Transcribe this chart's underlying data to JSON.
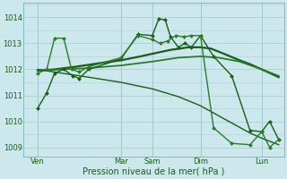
{
  "background_color": "#cce8ec",
  "grid_color": "#aad0d6",
  "line_color": "#1a5c1a",
  "xlabel": "Pression niveau de la mer( hPa )",
  "yticks": [
    1009,
    1010,
    1011,
    1012,
    1013,
    1014
  ],
  "xtick_labels": [
    "Ven",
    "Mar",
    "Sam",
    "Dim",
    "Lun"
  ],
  "xtick_positions": [
    0.055,
    0.375,
    0.495,
    0.68,
    0.915
  ],
  "vline_positions": [
    0.055,
    0.375,
    0.495,
    0.68,
    0.915
  ],
  "series": [
    {
      "x": [
        0.055,
        0.09,
        0.12,
        0.155,
        0.19,
        0.215,
        0.25,
        0.375,
        0.44,
        0.495,
        0.52,
        0.545,
        0.565,
        0.595,
        0.62,
        0.645,
        0.68,
        0.73,
        0.8,
        0.87,
        0.915,
        0.945,
        0.98
      ],
      "y": [
        1010.5,
        1011.1,
        1011.85,
        1012.0,
        1011.75,
        1011.65,
        1012.0,
        1012.4,
        1013.35,
        1013.3,
        1013.95,
        1013.9,
        1013.25,
        1012.85,
        1013.0,
        1012.85,
        1013.3,
        1012.5,
        1011.75,
        1009.65,
        1009.6,
        1010.0,
        1009.3
      ],
      "color": "#1a5c1a",
      "lw": 1.0,
      "marker": "D",
      "ms": 2.0
    },
    {
      "x": [
        0.055,
        0.09,
        0.12,
        0.155,
        0.185,
        0.215,
        0.25,
        0.375,
        0.44,
        0.495,
        0.525,
        0.555,
        0.585,
        0.615,
        0.645,
        0.68,
        0.73,
        0.8,
        0.87,
        0.915,
        0.945,
        0.98
      ],
      "y": [
        1011.85,
        1012.0,
        1013.2,
        1013.2,
        1012.0,
        1011.9,
        1012.1,
        1012.45,
        1013.3,
        1013.15,
        1013.0,
        1013.1,
        1013.3,
        1013.25,
        1013.3,
        1013.3,
        1009.75,
        1009.15,
        1009.1,
        1009.6,
        1009.0,
        1009.3
      ],
      "color": "#2d7a2d",
      "lw": 1.0,
      "marker": "D",
      "ms": 2.0
    },
    {
      "x": [
        0.055,
        0.12,
        0.2,
        0.3,
        0.375,
        0.45,
        0.495,
        0.565,
        0.635,
        0.68,
        0.72,
        0.77,
        0.83,
        0.87,
        0.915,
        0.98
      ],
      "y": [
        1011.95,
        1012.0,
        1012.1,
        1012.25,
        1012.35,
        1012.5,
        1012.6,
        1012.75,
        1012.85,
        1012.85,
        1012.8,
        1012.6,
        1012.35,
        1012.2,
        1012.0,
        1011.7
      ],
      "color": "#1a5c1a",
      "lw": 1.6,
      "marker": null,
      "ms": 0
    },
    {
      "x": [
        0.055,
        0.15,
        0.25,
        0.375,
        0.495,
        0.595,
        0.68,
        0.75,
        0.83,
        0.915,
        0.98
      ],
      "y": [
        1011.95,
        1012.0,
        1012.05,
        1012.15,
        1012.3,
        1012.45,
        1012.5,
        1012.45,
        1012.3,
        1012.0,
        1011.75
      ],
      "color": "#2d7a2d",
      "lw": 1.3,
      "marker": null,
      "ms": 0
    },
    {
      "x": [
        0.055,
        0.15,
        0.25,
        0.375,
        0.495,
        0.595,
        0.68,
        0.77,
        0.87,
        0.915,
        0.98
      ],
      "y": [
        1012.0,
        1011.85,
        1011.7,
        1011.5,
        1011.25,
        1010.95,
        1010.6,
        1010.1,
        1009.55,
        1009.35,
        1009.1
      ],
      "color": "#1a5c1a",
      "lw": 1.0,
      "marker": null,
      "ms": 0
    }
  ]
}
